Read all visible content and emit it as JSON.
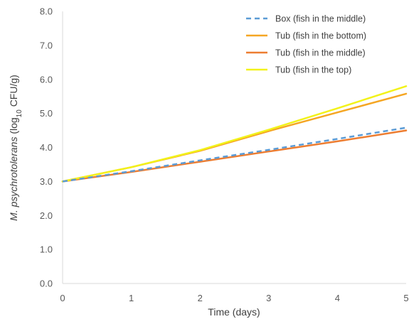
{
  "chart_data": {
    "type": "line",
    "xlabel": "Time (days)",
    "ylabel_italic": "M. psychrotolerans",
    "ylabel_pre": " (log",
    "ylabel_sub": "10",
    "ylabel_post": " CFU/g)",
    "xlim": [
      0,
      5
    ],
    "ylim": [
      0,
      8
    ],
    "xticks": [
      "0",
      "1",
      "2",
      "3",
      "4",
      "5"
    ],
    "yticks": [
      "0.0",
      "1.0",
      "2.0",
      "3.0",
      "4.0",
      "5.0",
      "6.0",
      "7.0",
      "8.0"
    ],
    "grid": false,
    "legend_position": "top-right",
    "series": [
      {
        "name": "Box (fish in the middle)",
        "color": "#5b9bd5",
        "dash": true,
        "x": [
          0,
          1,
          2,
          3,
          4,
          5
        ],
        "y": [
          3.0,
          3.3,
          3.62,
          3.93,
          4.25,
          4.58
        ]
      },
      {
        "name": "Tub (fish in the bottom)",
        "color": "#f5a623",
        "dash": false,
        "x": [
          0,
          1,
          2,
          3,
          4,
          5
        ],
        "y": [
          3.0,
          3.42,
          3.9,
          4.48,
          5.03,
          5.58
        ]
      },
      {
        "name": "Tub (fish in the middle)",
        "color": "#ed7d31",
        "dash": false,
        "x": [
          0,
          1,
          2,
          3,
          4,
          5
        ],
        "y": [
          3.0,
          3.28,
          3.58,
          3.88,
          4.18,
          4.5
        ]
      },
      {
        "name": "Tub (fish in the top)",
        "color": "#f2f21a",
        "dash": false,
        "x": [
          0,
          1,
          2,
          3,
          4,
          5
        ],
        "y": [
          3.0,
          3.42,
          3.92,
          4.52,
          5.15,
          5.8
        ]
      }
    ]
  }
}
